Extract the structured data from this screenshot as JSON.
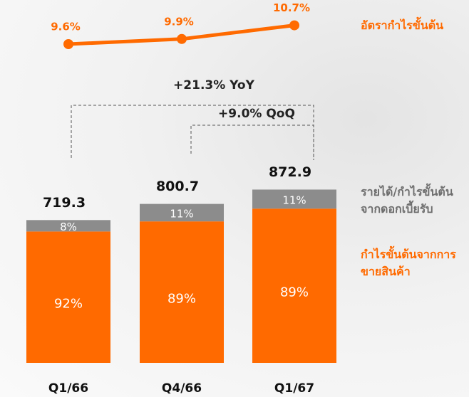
{
  "chart_data": [
    {
      "type": "line",
      "categories": [
        "Q1/66",
        "Q4/66",
        "Q1/67"
      ],
      "series": [
        {
          "name": "อัตรากำไรขั้นต้น",
          "color": "#ff6a00",
          "values": [
            9.6,
            9.9,
            10.7
          ],
          "value_labels": [
            "9.6%",
            "9.9%",
            "10.7%"
          ]
        }
      ]
    },
    {
      "type": "bar",
      "categories": [
        "Q1/66",
        "Q4/66",
        "Q1/67"
      ],
      "values": [
        719.3,
        800.7,
        872.9
      ],
      "series": [
        {
          "name": "กำไรขั้นต้นจากการขายสินค้า",
          "color": "#ff6a00",
          "values": [
            92,
            89,
            89
          ],
          "value_labels": [
            "92%",
            "89%",
            "89%"
          ]
        },
        {
          "name": "รายได้/กำไรขั้นต้นจากดอกเบี้ยรับ",
          "color": "#8c8c8c",
          "values": [
            8,
            11,
            11
          ],
          "value_labels": [
            "8%",
            "11%",
            "11%"
          ]
        }
      ],
      "annotations": [
        "+21.3% YoY",
        "+9.0% QoQ"
      ]
    }
  ]
}
